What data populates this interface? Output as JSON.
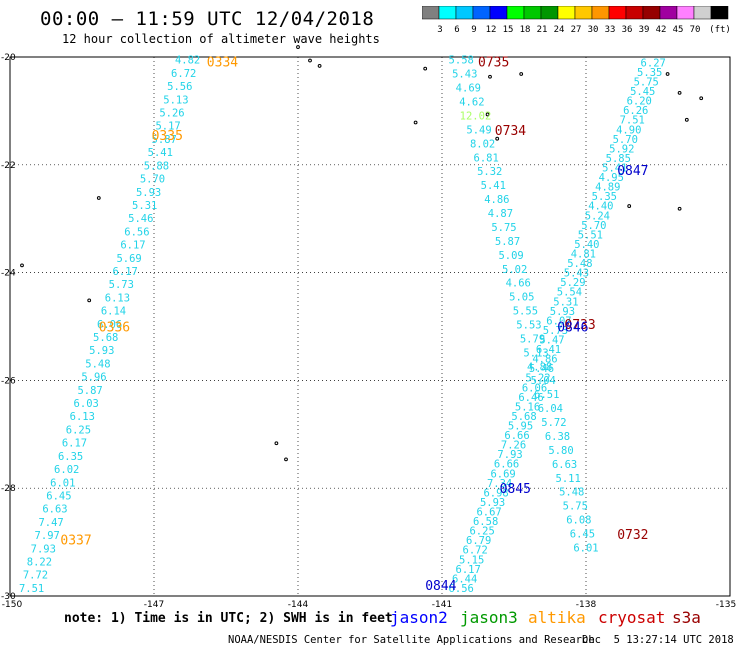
{
  "title": "00:00 — 11:59 UTC 12/04/2018",
  "subtitle": "12 hour collection of altimeter wave heights",
  "colorbar": {
    "unit": "(ft)",
    "ticks": [
      "3",
      "6",
      "9",
      "12",
      "15",
      "18",
      "21",
      "24",
      "27",
      "30",
      "33",
      "36",
      "39",
      "42",
      "45",
      "70"
    ],
    "colors": [
      "#808080",
      "#00ffff",
      "#00c8ff",
      "#0064ff",
      "#0000ff",
      "#00ff00",
      "#00c800",
      "#009600",
      "#ffff00",
      "#ffc800",
      "#ff9600",
      "#ff0000",
      "#c80000",
      "#960000",
      "#a000a0",
      "#ff80ff",
      "#d0d0d0",
      "#000000"
    ]
  },
  "axes": {
    "lon_labels": [
      "-150",
      "-147",
      "-144",
      "-141",
      "-138",
      "-135"
    ],
    "lat_labels": [
      "-20",
      "-22",
      "-24",
      "-26",
      "-28",
      "-30"
    ],
    "lon_range": [
      -150,
      -135
    ],
    "lat_range": [
      -30,
      -20
    ]
  },
  "tracks": [
    {
      "name": "track-left",
      "color": "#22d3e8",
      "start": [
        -146.3,
        -20.05
      ],
      "end": [
        -149.55,
        -29.85
      ],
      "values": [
        "4.82",
        "6.72",
        "5.56",
        "5.13",
        "5.26",
        "5.17",
        "5.87",
        "5.41",
        "5.88",
        "5.70",
        "5.93",
        "5.31",
        "5.46",
        "6.56",
        "6.17",
        "5.69",
        "6.17",
        "5.73",
        "6.13",
        "6.14",
        "6.06",
        "5.68",
        "5.93",
        "5.48",
        "5.96",
        "5.87",
        "6.03",
        "6.13",
        "6.25",
        "6.17",
        "6.35",
        "6.02",
        "6.01",
        "6.45",
        "6.63",
        "7.47",
        "7.97",
        "7.93",
        "8.22",
        "7.72",
        "7.51"
      ]
    },
    {
      "name": "track-mid-desc",
      "color": "#22d3e8",
      "start": [
        -140.6,
        -20.05
      ],
      "end": [
        -138.0,
        -29.1
      ],
      "values": [
        "5.58",
        "5.43",
        "4.69",
        "4.62",
        "12.02",
        "5.49",
        "8.02",
        "6.81",
        "5.32",
        "5.41",
        "4.86",
        "4.87",
        "5.75",
        "5.87",
        "5.09",
        "5.02",
        "4.66",
        "5.05",
        "5.55",
        "5.53",
        "5.79",
        "5.13",
        "4.88",
        "5.04",
        "6.51",
        "6.04",
        "5.72",
        "6.38",
        "5.80",
        "6.63",
        "5.11",
        "5.48",
        "5.75",
        "6.08",
        "6.45",
        "6.01"
      ],
      "highlight": {
        "index": 4,
        "color": "#aaff66"
      }
    },
    {
      "name": "track-mid-asc",
      "color": "#22d3e8",
      "start": [
        -136.6,
        -20.1
      ],
      "end": [
        -140.6,
        -29.85
      ],
      "values": [
        "6.27",
        "5.35",
        "5.75",
        "5.45",
        "6.20",
        "6.26",
        "7.51",
        "4.90",
        "5.70",
        "5.92",
        "5.85",
        "5.41",
        "4.95",
        "4.89",
        "5.35",
        "4.40",
        "5.24",
        "5.70",
        "5.51",
        "5.40",
        "4.81",
        "5.48",
        "5.43",
        "5.29",
        "5.54",
        "5.31",
        "5.93",
        "6.07",
        "5.73",
        "5.47",
        "6.41",
        "4.86",
        "5.46",
        "5.22",
        "6.06",
        "6.46",
        "5.16",
        "5.68",
        "5.95",
        "6.66",
        "7.26",
        "7.93",
        "6.66",
        "6.69",
        "7.34",
        "6.98",
        "5.93",
        "6.67",
        "6.58",
        "6.25",
        "6.79",
        "6.72",
        "5.15",
        "6.17",
        "6.44",
        "6.56"
      ]
    }
  ],
  "time_labels": [
    {
      "text": "0334",
      "color": "#ff9900",
      "lon": -145.9,
      "lat": -20.08
    },
    {
      "text": "0335",
      "color": "#ff9900",
      "lon": -147.05,
      "lat": -21.45
    },
    {
      "text": "0336",
      "color": "#ff9900",
      "lon": -148.15,
      "lat": -25.0
    },
    {
      "text": "0337",
      "color": "#ff9900",
      "lon": -148.95,
      "lat": -28.95
    },
    {
      "text": "0735",
      "color": "#990000",
      "lon": -140.25,
      "lat": -20.08
    },
    {
      "text": "0734",
      "color": "#990000",
      "lon": -139.9,
      "lat": -21.35
    },
    {
      "text": "0733",
      "color": "#990000",
      "lon": -138.45,
      "lat": -24.95
    },
    {
      "text": "0732",
      "color": "#990000",
      "lon": -137.35,
      "lat": -28.85
    },
    {
      "text": "0847",
      "color": "#0000cc",
      "lon": -137.35,
      "lat": -22.1
    },
    {
      "text": "0846",
      "color": "#0000cc",
      "lon": -138.6,
      "lat": -25.0
    },
    {
      "text": "0845",
      "color": "#0000cc",
      "lon": -139.8,
      "lat": -28.0
    },
    {
      "text": "0844",
      "color": "#0000cc",
      "lon": -141.35,
      "lat": -29.8
    }
  ],
  "note": "note: 1) Time is in UTC; 2) SWH is in feet",
  "satellites": [
    {
      "name": "jason2",
      "color": "#0000ff"
    },
    {
      "name": "jason3",
      "color": "#009900"
    },
    {
      "name": "altika",
      "color": "#ff9900"
    },
    {
      "name": "cryosat",
      "color": "#cc0000"
    },
    {
      "name": "s3a",
      "color": "#990000"
    }
  ],
  "credit": "NOAA/NESDIS Center for Satellite Applications and Research",
  "credit_date": "Dec  5 13:27:14 UTC 2018"
}
